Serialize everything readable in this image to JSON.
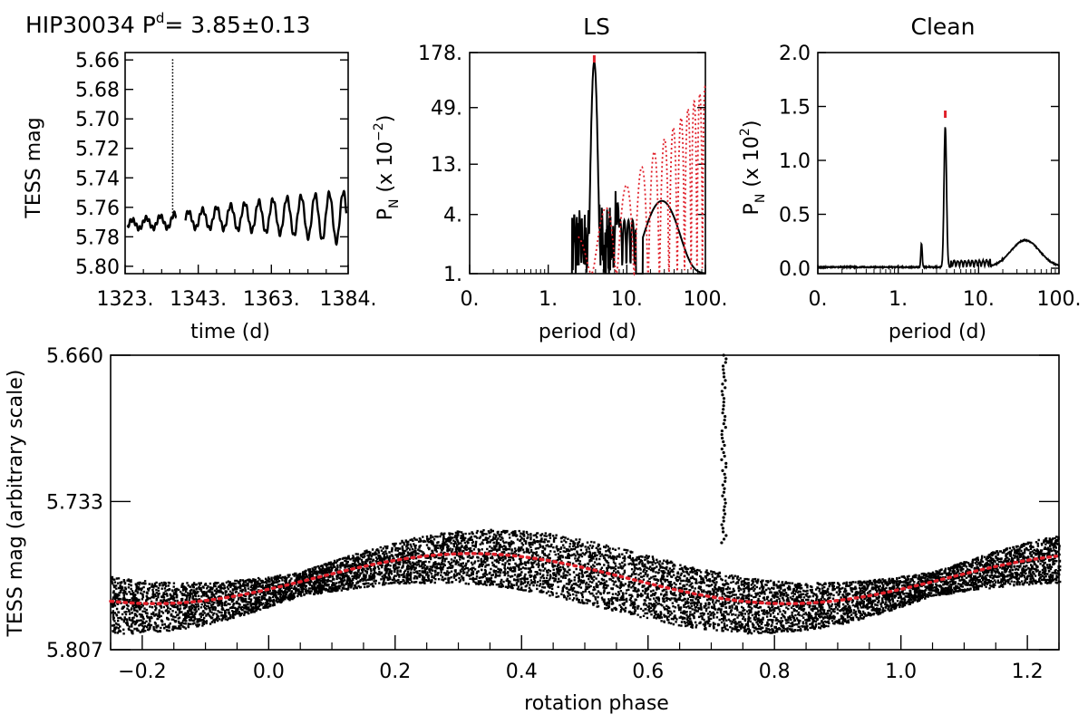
{
  "header": {
    "star": "HIP30034",
    "period_symbol": "P",
    "period_sup": "d",
    "period_eq": "= 3.85±0.13"
  },
  "chart_data": [
    {
      "panel": "lightcurve",
      "type": "line",
      "ylabel": "TESS mag",
      "xlabel": "time (d)",
      "x_ticks": [
        "1323.",
        "1343.",
        "1363.",
        "1384."
      ],
      "y_ticks": [
        "5.66",
        "5.68",
        "5.70",
        "5.72",
        "5.74",
        "5.76",
        "5.78",
        "5.80"
      ],
      "xlim": [
        1323,
        1384
      ],
      "ylim": [
        5.805,
        5.655
      ],
      "gap_days": [
        1337,
        1339.5
      ],
      "outlier_time": 1336,
      "base_mag": 5.772,
      "period_days": 3.85
    },
    {
      "panel": "LS",
      "type": "line",
      "title": "LS",
      "xlabel": "period (d)",
      "ylabel_parts": [
        "P",
        "N",
        "(x 10",
        "−2",
        ")"
      ],
      "log_x": true,
      "log_y": true,
      "x_ticks": [
        "0.",
        "1.",
        "10.",
        "100."
      ],
      "y_ticks": [
        "1.",
        "4.",
        "13.",
        "49.",
        "178."
      ],
      "xlim": [
        0.1,
        100
      ],
      "ylim": [
        1,
        178
      ],
      "peak_period": 3.85,
      "peak_power": 140,
      "marker_color": "#e0202a",
      "window_color": "#e0202a"
    },
    {
      "panel": "Clean",
      "type": "line",
      "title": "Clean",
      "xlabel": "period (d)",
      "ylabel_parts": [
        "P",
        "N",
        "(x 10",
        "2",
        ")"
      ],
      "log_x": true,
      "x_ticks": [
        "0.",
        "1.",
        "10.",
        "100."
      ],
      "y_ticks": [
        "0.0",
        "0.5",
        "1.0",
        "1.5",
        "2.0"
      ],
      "xlim": [
        0.1,
        100
      ],
      "ylim": [
        0,
        2.0
      ],
      "peak_period": 3.85,
      "peak_power": 1.3,
      "marker_color": "#e0202a"
    },
    {
      "panel": "phased",
      "type": "scatter",
      "xlabel": "rotation phase",
      "ylabel": "TESS mag (arbitrary scale)",
      "x_ticks": [
        "−0.2",
        "0.0",
        "0.2",
        "0.4",
        "0.6",
        "0.8",
        "1.0",
        "1.2"
      ],
      "y_ticks": [
        "5.660",
        "5.733",
        "5.807"
      ],
      "xlim": [
        -0.25,
        1.25
      ],
      "ylim": [
        5.807,
        5.66
      ],
      "fit_mean": 5.7715,
      "fit_amplitude": 0.0125,
      "fit_min_phase": 0.32,
      "fit_color": "#e0202a",
      "outlier_phase": 0.72
    }
  ]
}
